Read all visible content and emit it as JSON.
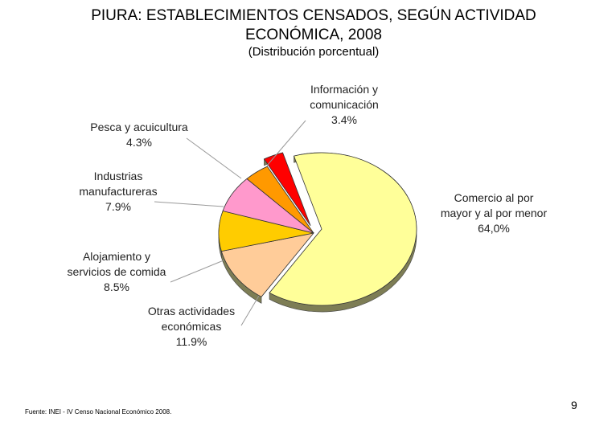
{
  "title_lines": [
    "PIURA: ESTABLECIMIENTOS CENSADOS, SEGÚN ACTIVIDAD",
    "ECONÓMICA, 2008"
  ],
  "subtitle": "(Distribución porcentual)",
  "chart_data": {
    "type": "pie",
    "title": "PIURA: ESTABLECIMIENTOS CENSADOS, SEGÚN ACTIVIDAD ECONÓMICA, 2008",
    "subtitle": "(Distribución porcentual)",
    "unit": "%",
    "slices": [
      {
        "label_lines": [
          "Comercio al por",
          "mayor y al por menor"
        ],
        "value_text": "64,0%",
        "value": 64.0,
        "color": "#FFFF99",
        "exploded": true
      },
      {
        "label_lines": [
          "Otras actividades",
          "económicas"
        ],
        "value_text": "11.9%",
        "value": 11.9,
        "color": "#FFCC99",
        "exploded": false
      },
      {
        "label_lines": [
          "Alojamiento y",
          "servicios de comida"
        ],
        "value_text": "8.5%",
        "value": 8.5,
        "color": "#FFCC00",
        "exploded": false
      },
      {
        "label_lines": [
          "Industrias",
          "manufactureras"
        ],
        "value_text": "7.9%",
        "value": 7.9,
        "color": "#FF99CC",
        "exploded": false
      },
      {
        "label_lines": [
          "Pesca y acuicultura"
        ],
        "value_text": "4.3%",
        "value": 4.3,
        "color": "#FF9900",
        "exploded": false
      },
      {
        "label_lines": [
          "Información y",
          "comunicación"
        ],
        "value_text": "3.4%",
        "value": 3.4,
        "color": "#FF0000",
        "exploded": true
      }
    ]
  },
  "source": "Fuente: INEI - IV Censo Nacional Económico 2008.",
  "page_number": "9"
}
